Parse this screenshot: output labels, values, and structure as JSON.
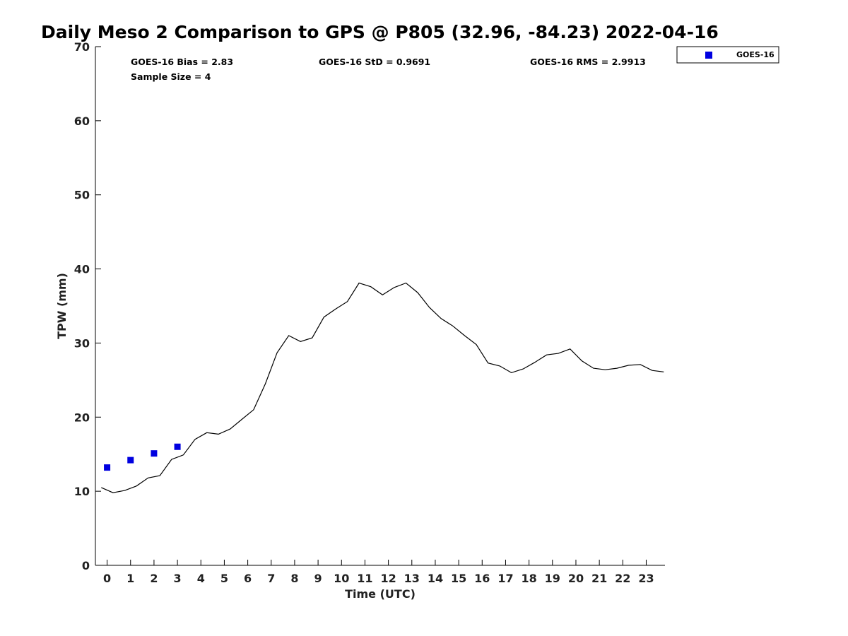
{
  "chart_data": {
    "type": "line",
    "title": "Daily Meso 2 Comparison to GPS @ P805 (32.96, -84.23) 2022-04-16",
    "xlabel": "Time (UTC)",
    "ylabel": "TPW (mm)",
    "xlim": [
      -0.5,
      23.8
    ],
    "ylim": [
      0,
      70
    ],
    "x_ticks": [
      0,
      1,
      2,
      3,
      4,
      5,
      6,
      7,
      8,
      9,
      10,
      11,
      12,
      13,
      14,
      15,
      16,
      17,
      18,
      19,
      20,
      21,
      22,
      23
    ],
    "y_ticks": [
      0,
      10,
      20,
      30,
      40,
      50,
      60,
      70
    ],
    "grid": false,
    "legend_position": "top-right",
    "legend": [
      "GOES-16"
    ],
    "stats": {
      "bias": "GOES-16 Bias = 2.83",
      "std": "GOES-16 StD = 0.9691",
      "rms": "GOES-16 RMS = 2.9913",
      "sample_size": "Sample Size = 4"
    },
    "series": [
      {
        "kind": "line",
        "color": "#000000",
        "x": [
          -0.25,
          0.25,
          0.75,
          1.25,
          1.75,
          2.25,
          2.75,
          3.25,
          3.75,
          4.25,
          4.75,
          5.25,
          5.75,
          6.25,
          6.75,
          7.25,
          7.75,
          8.25,
          8.75,
          9.25,
          9.75,
          10.25,
          10.75,
          11.25,
          11.75,
          12.25,
          12.75,
          13.25,
          13.75,
          14.25,
          14.75,
          15.25,
          15.75,
          16.25,
          16.75,
          17.25,
          17.75,
          18.25,
          18.75,
          19.25,
          19.75,
          20.25,
          20.75,
          21.25,
          21.75,
          22.25,
          22.75,
          23.25,
          23.75
        ],
        "y": [
          10.5,
          9.8,
          10.1,
          10.7,
          11.8,
          12.1,
          14.3,
          14.9,
          17.0,
          17.9,
          17.7,
          18.4,
          19.7,
          21.0,
          24.5,
          28.7,
          31.0,
          30.2,
          30.7,
          33.5,
          34.6,
          35.6,
          38.1,
          37.6,
          36.5,
          37.5,
          38.1,
          36.8,
          34.8,
          33.3,
          32.3,
          31.0,
          29.8,
          27.3,
          26.9,
          26.0,
          26.5,
          27.4,
          28.4,
          28.6,
          29.2,
          27.6,
          26.6,
          26.4,
          26.6,
          27.0,
          27.1,
          26.3,
          26.1
        ]
      },
      {
        "kind": "scatter",
        "name": "GOES-16",
        "color": "#0000e0",
        "x": [
          0.0,
          1.0,
          2.0,
          3.0
        ],
        "y": [
          13.2,
          14.2,
          15.1,
          16.0
        ]
      }
    ]
  }
}
